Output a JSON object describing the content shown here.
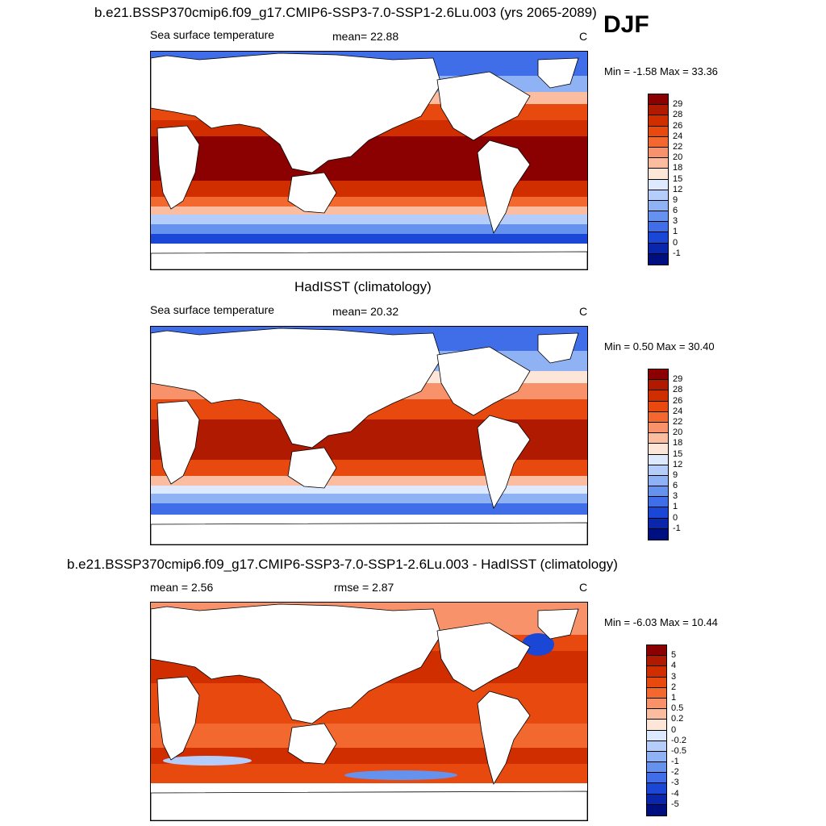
{
  "season": "DJF",
  "panels": [
    {
      "title": "b.e21.BSSP370cmip6.f09_g17.CMIP6-SSP3-7.0-SSP1-2.6Lu.003 (yrs 2065-2089)",
      "left_label": "Sea surface temperature",
      "mid_label": "mean=  22.88",
      "units": "C",
      "minmax": "Min =  -1.58 Max =  33.36"
    },
    {
      "title": "HadISST (climatology)",
      "left_label": "Sea surface temperature",
      "mid_label": "mean=  20.32",
      "units": "C",
      "minmax": "Min =   0.50 Max =  30.40"
    },
    {
      "title": "b.e21.BSSP370cmip6.f09_g17.CMIP6-SSP3-7.0-SSP1-2.6Lu.003 - HadISST (climatology)",
      "left_label": "mean =   2.56",
      "mid_label": "rmse =   2.87",
      "units": "C",
      "minmax": "Min =  -6.03 Max =  10.44"
    }
  ],
  "sst_colorbar": {
    "labels": [
      "29",
      "28",
      "26",
      "24",
      "22",
      "20",
      "18",
      "15",
      "12",
      "9",
      "6",
      "3",
      "1",
      "0",
      "-1"
    ],
    "colors": [
      "#8b0000",
      "#b01a00",
      "#d12e00",
      "#e8490f",
      "#f2682f",
      "#f7926a",
      "#fbbca0",
      "#fde6d8",
      "#dce9ff",
      "#b5cdfa",
      "#8fb2f5",
      "#6692ef",
      "#3f6ee8",
      "#1a47d6",
      "#0a26ad",
      "#000f80"
    ]
  },
  "diff_colorbar": {
    "labels": [
      "5",
      "4",
      "3",
      "2",
      "1",
      "0.5",
      "0.2",
      "0",
      "-0.2",
      "-0.5",
      "-1",
      "-2",
      "-3",
      "-4",
      "-5"
    ],
    "colors": [
      "#8b0000",
      "#b01a00",
      "#d12e00",
      "#e8490f",
      "#f2682f",
      "#f7926a",
      "#fbbca0",
      "#fde6d8",
      "#dce9ff",
      "#b5cdfa",
      "#8fb2f5",
      "#6692ef",
      "#3f6ee8",
      "#1a47d6",
      "#0a26ad",
      "#000f80"
    ]
  }
}
